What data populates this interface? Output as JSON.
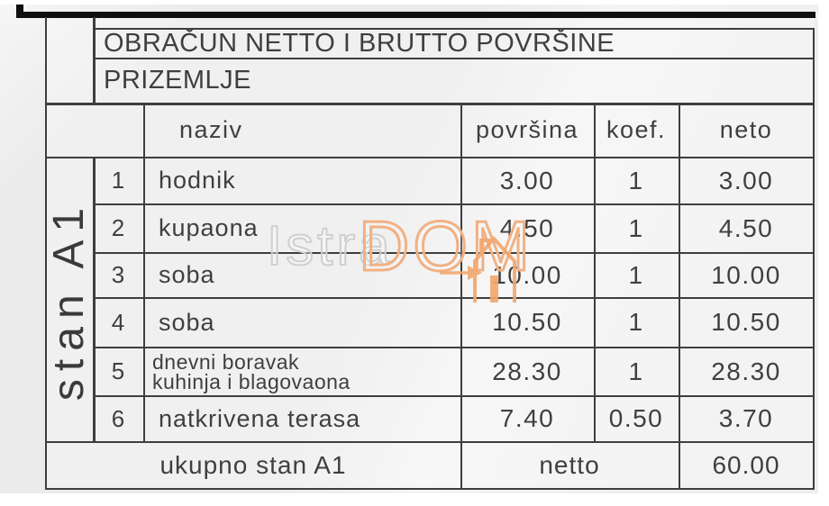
{
  "table": {
    "title": "OBRAČUN NETTO I BRUTTO POVRŠINE",
    "floor": "PRIZEMLJE",
    "unit_label": "stan A1",
    "columns": {
      "naziv": "naziv",
      "povrsina": "površina",
      "koef": "koef.",
      "neto": "neto"
    },
    "rows": [
      {
        "num": "1",
        "naziv": "hodnik",
        "povrsina": "3.00",
        "koef": "1",
        "neto": "3.00"
      },
      {
        "num": "2",
        "naziv": "kupaona",
        "povrsina": "4.50",
        "koef": "1",
        "neto": "4.50"
      },
      {
        "num": "3",
        "naziv": "soba",
        "povrsina": "10.00",
        "koef": "1",
        "neto": "10.00"
      },
      {
        "num": "4",
        "naziv": "soba",
        "povrsina": "10.50",
        "koef": "1",
        "neto": "10.50"
      },
      {
        "num": "5",
        "naziv": "dnevni boravak\nkuhinja i blagovaona",
        "povrsina": "28.30",
        "koef": "1",
        "neto": "28.30"
      },
      {
        "num": "6",
        "naziv": "natkrivena terasa",
        "povrsina": "7.40",
        "koef": "0.50",
        "neto": "3.70"
      }
    ],
    "footer": {
      "label": "ukupno stan A1",
      "neto_label": "netto",
      "total": "60.00"
    }
  },
  "watermark": {
    "part1": "Istra",
    "part2": "DOM",
    "house_icon": "house-icon"
  },
  "colors": {
    "border": "#3e3e3e",
    "cell_bg": "#f0f0f0",
    "page_bg": "#ebebeb",
    "top_bar": "#0f0f0f",
    "watermark_gray": "#cfcfcf",
    "watermark_orange": "#f0b184"
  }
}
